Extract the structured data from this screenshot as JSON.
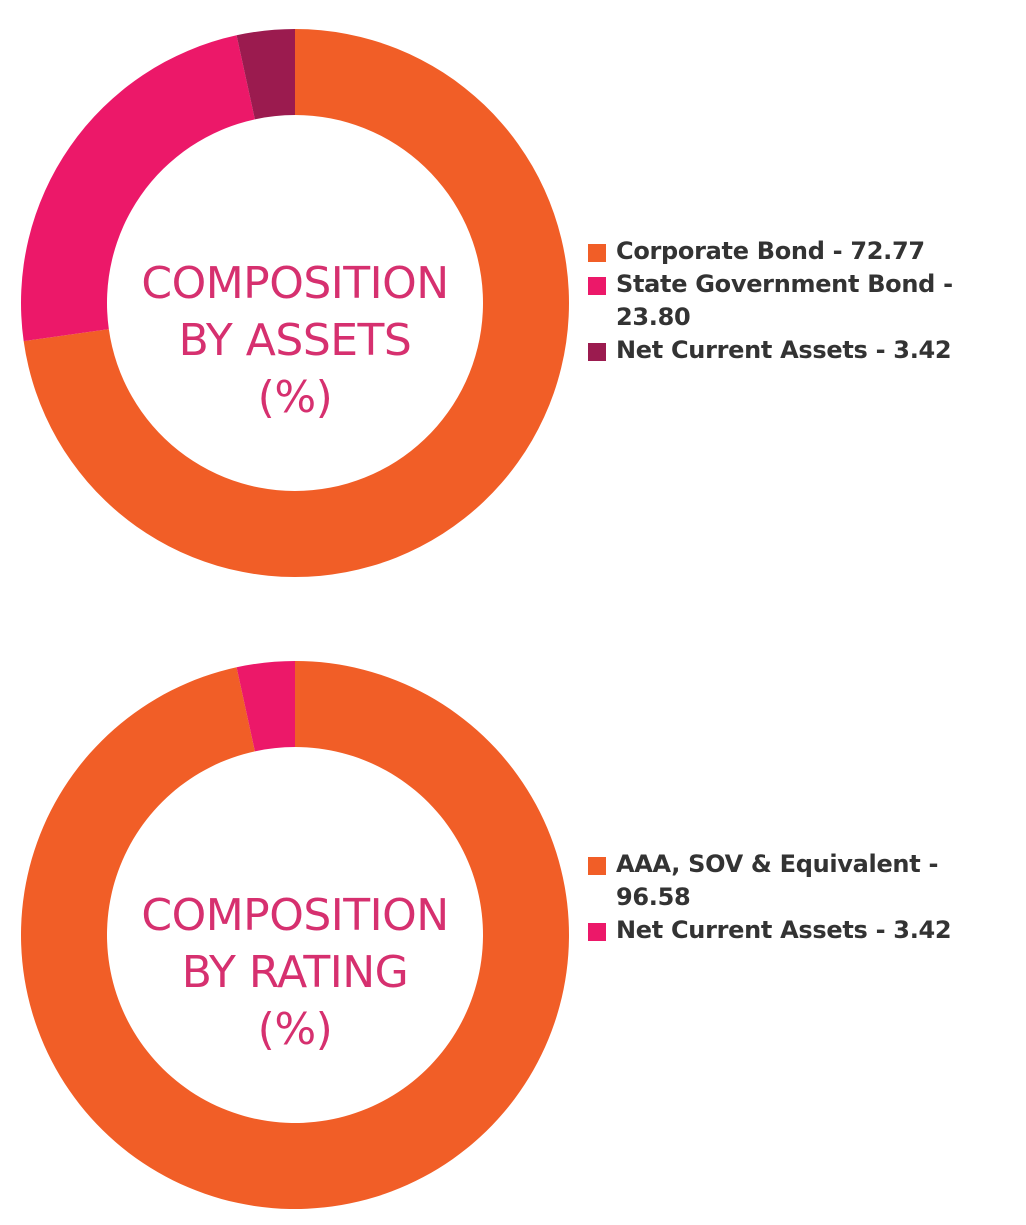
{
  "colors": {
    "orange": "#f15e27",
    "pink": "#ec1869",
    "maroon": "#9b1b4f",
    "center_text": "#d6306f",
    "legend_text": "#333333"
  },
  "chart_data": [
    {
      "type": "pie",
      "title_lines": [
        "COMPOSITION",
        "BY ASSETS",
        "(%)"
      ],
      "slices": [
        {
          "name": "Corporate Bond",
          "value": 72.77,
          "color": "#f15e27",
          "legend": "Corporate Bond - 72.77"
        },
        {
          "name": "State Government Bond",
          "value": 23.8,
          "color": "#ec1869",
          "legend": "State Government Bond - 23.80"
        },
        {
          "name": "Net Current Assets",
          "value": 3.42,
          "color": "#9b1b4f",
          "legend": "Net Current Assets - 3.42"
        }
      ],
      "legend_position": "right"
    },
    {
      "type": "pie",
      "title_lines": [
        "COMPOSITION",
        "BY RATING",
        "(%)"
      ],
      "slices": [
        {
          "name": "AAA, SOV & Equivalent",
          "value": 96.58,
          "color": "#f15e27",
          "legend": "AAA, SOV & Equivalent - 96.58"
        },
        {
          "name": "Net Current Assets",
          "value": 3.42,
          "color": "#ec1869",
          "legend": "Net Current Assets - 3.42"
        }
      ],
      "legend_position": "right"
    }
  ]
}
